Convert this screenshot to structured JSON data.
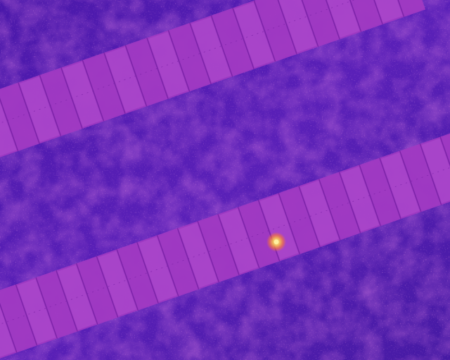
{
  "image": {
    "kind": "thermal-aerial",
    "subject": "solar-panel-rows",
    "palette": {
      "ground_dark": "#3a0f9e",
      "ground_mid": "#5a20b8",
      "ground_warm": "#7a2dbf",
      "panel_fill": "#a13ac2",
      "panel_edge": "#7c23a8",
      "panel_highlight": "#b14fcf",
      "hotspot_core": "#ffd24a",
      "hotspot_glow": "#ff7a2a"
    },
    "panel_rows": [
      {
        "name": "upper-panel-row",
        "module_count": 20
      },
      {
        "name": "lower-panel-row",
        "module_count": 24
      }
    ],
    "hotspot": {
      "present": true,
      "severity_hint": "single-cell"
    }
  }
}
